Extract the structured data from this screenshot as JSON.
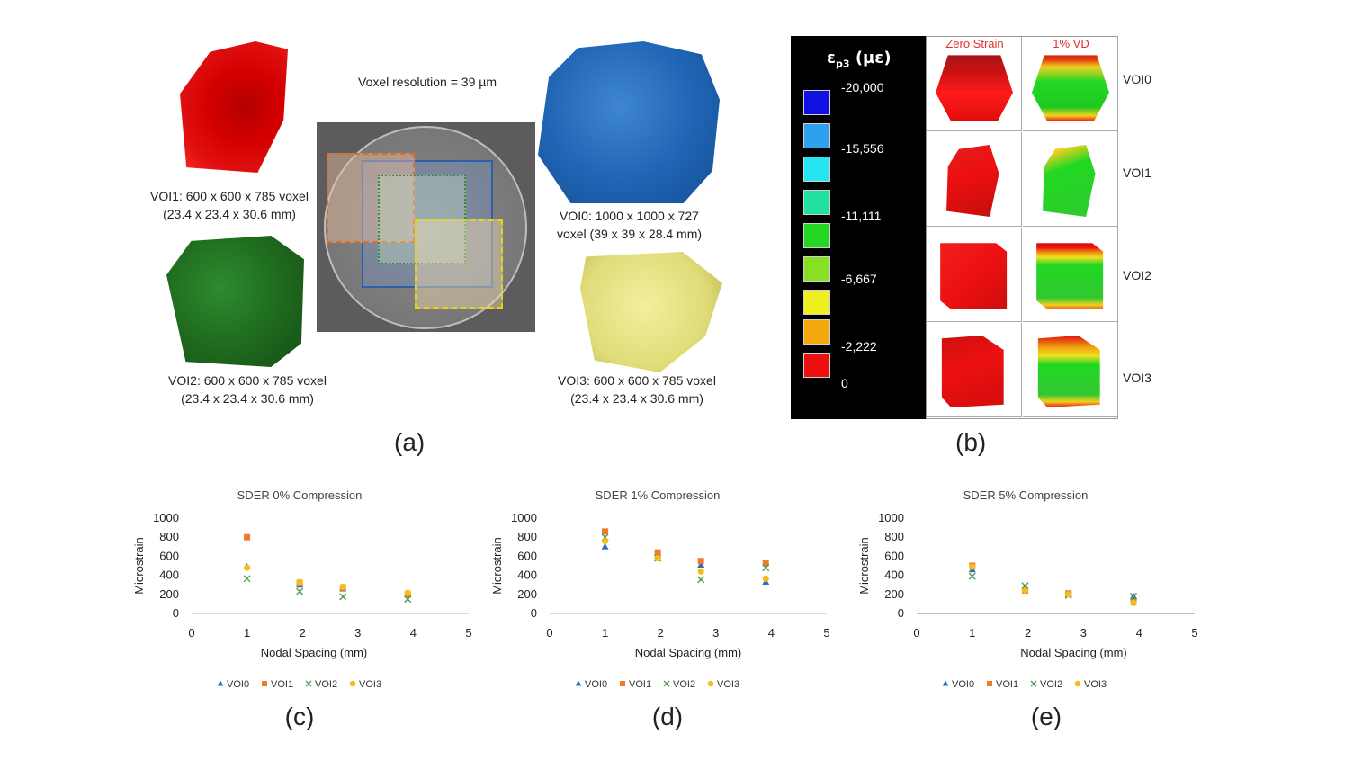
{
  "panel_a": {
    "voxel_resolution": "Voxel resolution = 39 µm",
    "voi1_line1": "VOI1: 600 x 600 x 785 voxel",
    "voi1_line2": "(23.4 x 23.4 x 30.6 mm)",
    "voi0_line1": "VOI0: 1000 x 1000 x 727",
    "voi0_line2": "voxel (39 x 39 x 28.4 mm)",
    "voi2_line1": "VOI2: 600 x 600 x 785 voxel",
    "voi2_line2": "(23.4 x 23.4 x 30.6 mm)",
    "voi3_line1": "VOI3: 600 x 600 x 785 voxel",
    "voi3_line2": "(23.4 x 23.4 x 30.6 mm)",
    "label": "(a)"
  },
  "panel_b": {
    "legend_title": "εp3 (µε)",
    "legend_ticks": [
      "-20,000",
      "-15,556",
      "-11,111",
      "-6,667",
      "-2,222",
      "0"
    ],
    "legend_colors": [
      "#1010e0",
      "#2ea0ee",
      "#25e6f0",
      "#22e0a0",
      "#22d822",
      "#88e022",
      "#f0f020",
      "#f5a80d",
      "#ee1010"
    ],
    "col_heads": [
      "Zero Strain",
      "1% VD"
    ],
    "rows": [
      "VOI0",
      "VOI1",
      "VOI2",
      "VOI3"
    ],
    "label": "(b)"
  },
  "chart_data": [
    {
      "type": "scatter",
      "title": "SDER 0% Compression",
      "xlabel": "Nodal Spacing (mm)",
      "ylabel": "Microstrain",
      "xlim": [
        0,
        5
      ],
      "ylim": [
        0,
        1000
      ],
      "x_ticks": [
        "0",
        "1",
        "2",
        "3",
        "4",
        "5"
      ],
      "y_ticks": [
        "0",
        "200",
        "400",
        "600",
        "800",
        "1000"
      ],
      "series": [
        {
          "name": "VOI0",
          "x": [
            1,
            1.95,
            2.73,
            3.9
          ],
          "y": [
            490,
            300,
            260,
            200
          ]
        },
        {
          "name": "VOI1",
          "x": [
            1,
            1.95,
            2.73,
            3.9
          ],
          "y": [
            800,
            320,
            270,
            200
          ]
        },
        {
          "name": "VOI2",
          "x": [
            1,
            1.95,
            2.73,
            3.9
          ],
          "y": [
            365,
            230,
            175,
            150
          ]
        },
        {
          "name": "VOI3",
          "x": [
            1,
            1.95,
            2.73,
            3.9
          ],
          "y": [
            480,
            330,
            280,
            215
          ]
        }
      ],
      "label": "(c)"
    },
    {
      "type": "scatter",
      "title": "SDER 1% Compression",
      "xlabel": "Nodal Spacing  (mm)",
      "ylabel": "Microstrain",
      "xlim": [
        0,
        5
      ],
      "ylim": [
        0,
        1000
      ],
      "x_ticks": [
        "0",
        "1",
        "2",
        "3",
        "4",
        "5"
      ],
      "y_ticks": [
        "0",
        "200",
        "400",
        "600",
        "800",
        "1000"
      ],
      "series": [
        {
          "name": "VOI0",
          "x": [
            1,
            1.95,
            2.73,
            3.9
          ],
          "y": [
            700,
            610,
            510,
            330
          ]
        },
        {
          "name": "VOI1",
          "x": [
            1,
            1.95,
            2.73,
            3.9
          ],
          "y": [
            860,
            640,
            550,
            530
          ]
        },
        {
          "name": "VOI2",
          "x": [
            1,
            1.95,
            2.73,
            3.9
          ],
          "y": [
            800,
            580,
            355,
            480
          ]
        },
        {
          "name": "VOI3",
          "x": [
            1,
            1.95,
            2.73,
            3.9
          ],
          "y": [
            760,
            580,
            440,
            365
          ]
        }
      ],
      "label": "(d)"
    },
    {
      "type": "scatter",
      "title": "SDER 5% Compression",
      "xlabel": "Nodal Spacing  (mm)",
      "ylabel": "Microstrain",
      "xlim": [
        0,
        5
      ],
      "ylim": [
        0,
        1000
      ],
      "x_ticks": [
        "0",
        "1",
        "2",
        "3",
        "4",
        "5"
      ],
      "y_ticks": [
        "0",
        "200",
        "400",
        "600",
        "800",
        "1000"
      ],
      "series": [
        {
          "name": "VOI0",
          "x": [
            1,
            1.95,
            2.73,
            3.9
          ],
          "y": [
            460,
            270,
            200,
            180
          ]
        },
        {
          "name": "VOI1",
          "x": [
            1,
            1.95,
            2.73,
            3.9
          ],
          "y": [
            500,
            240,
            210,
            120
          ]
        },
        {
          "name": "VOI2",
          "x": [
            1,
            1.95,
            2.73,
            3.9
          ],
          "y": [
            390,
            290,
            190,
            180
          ]
        },
        {
          "name": "VOI3",
          "x": [
            1,
            1.95,
            2.73,
            3.9
          ],
          "y": [
            490,
            240,
            200,
            110
          ]
        }
      ],
      "label": "(e)"
    }
  ],
  "series_colors": {
    "VOI0": "#2e6fc4",
    "VOI1": "#f07a2a",
    "VOI2": "#4f9a4f",
    "VOI3": "#f6bd1a"
  },
  "series_markers": {
    "VOI0": "triangle",
    "VOI1": "square",
    "VOI2": "x",
    "VOI3": "circle"
  }
}
